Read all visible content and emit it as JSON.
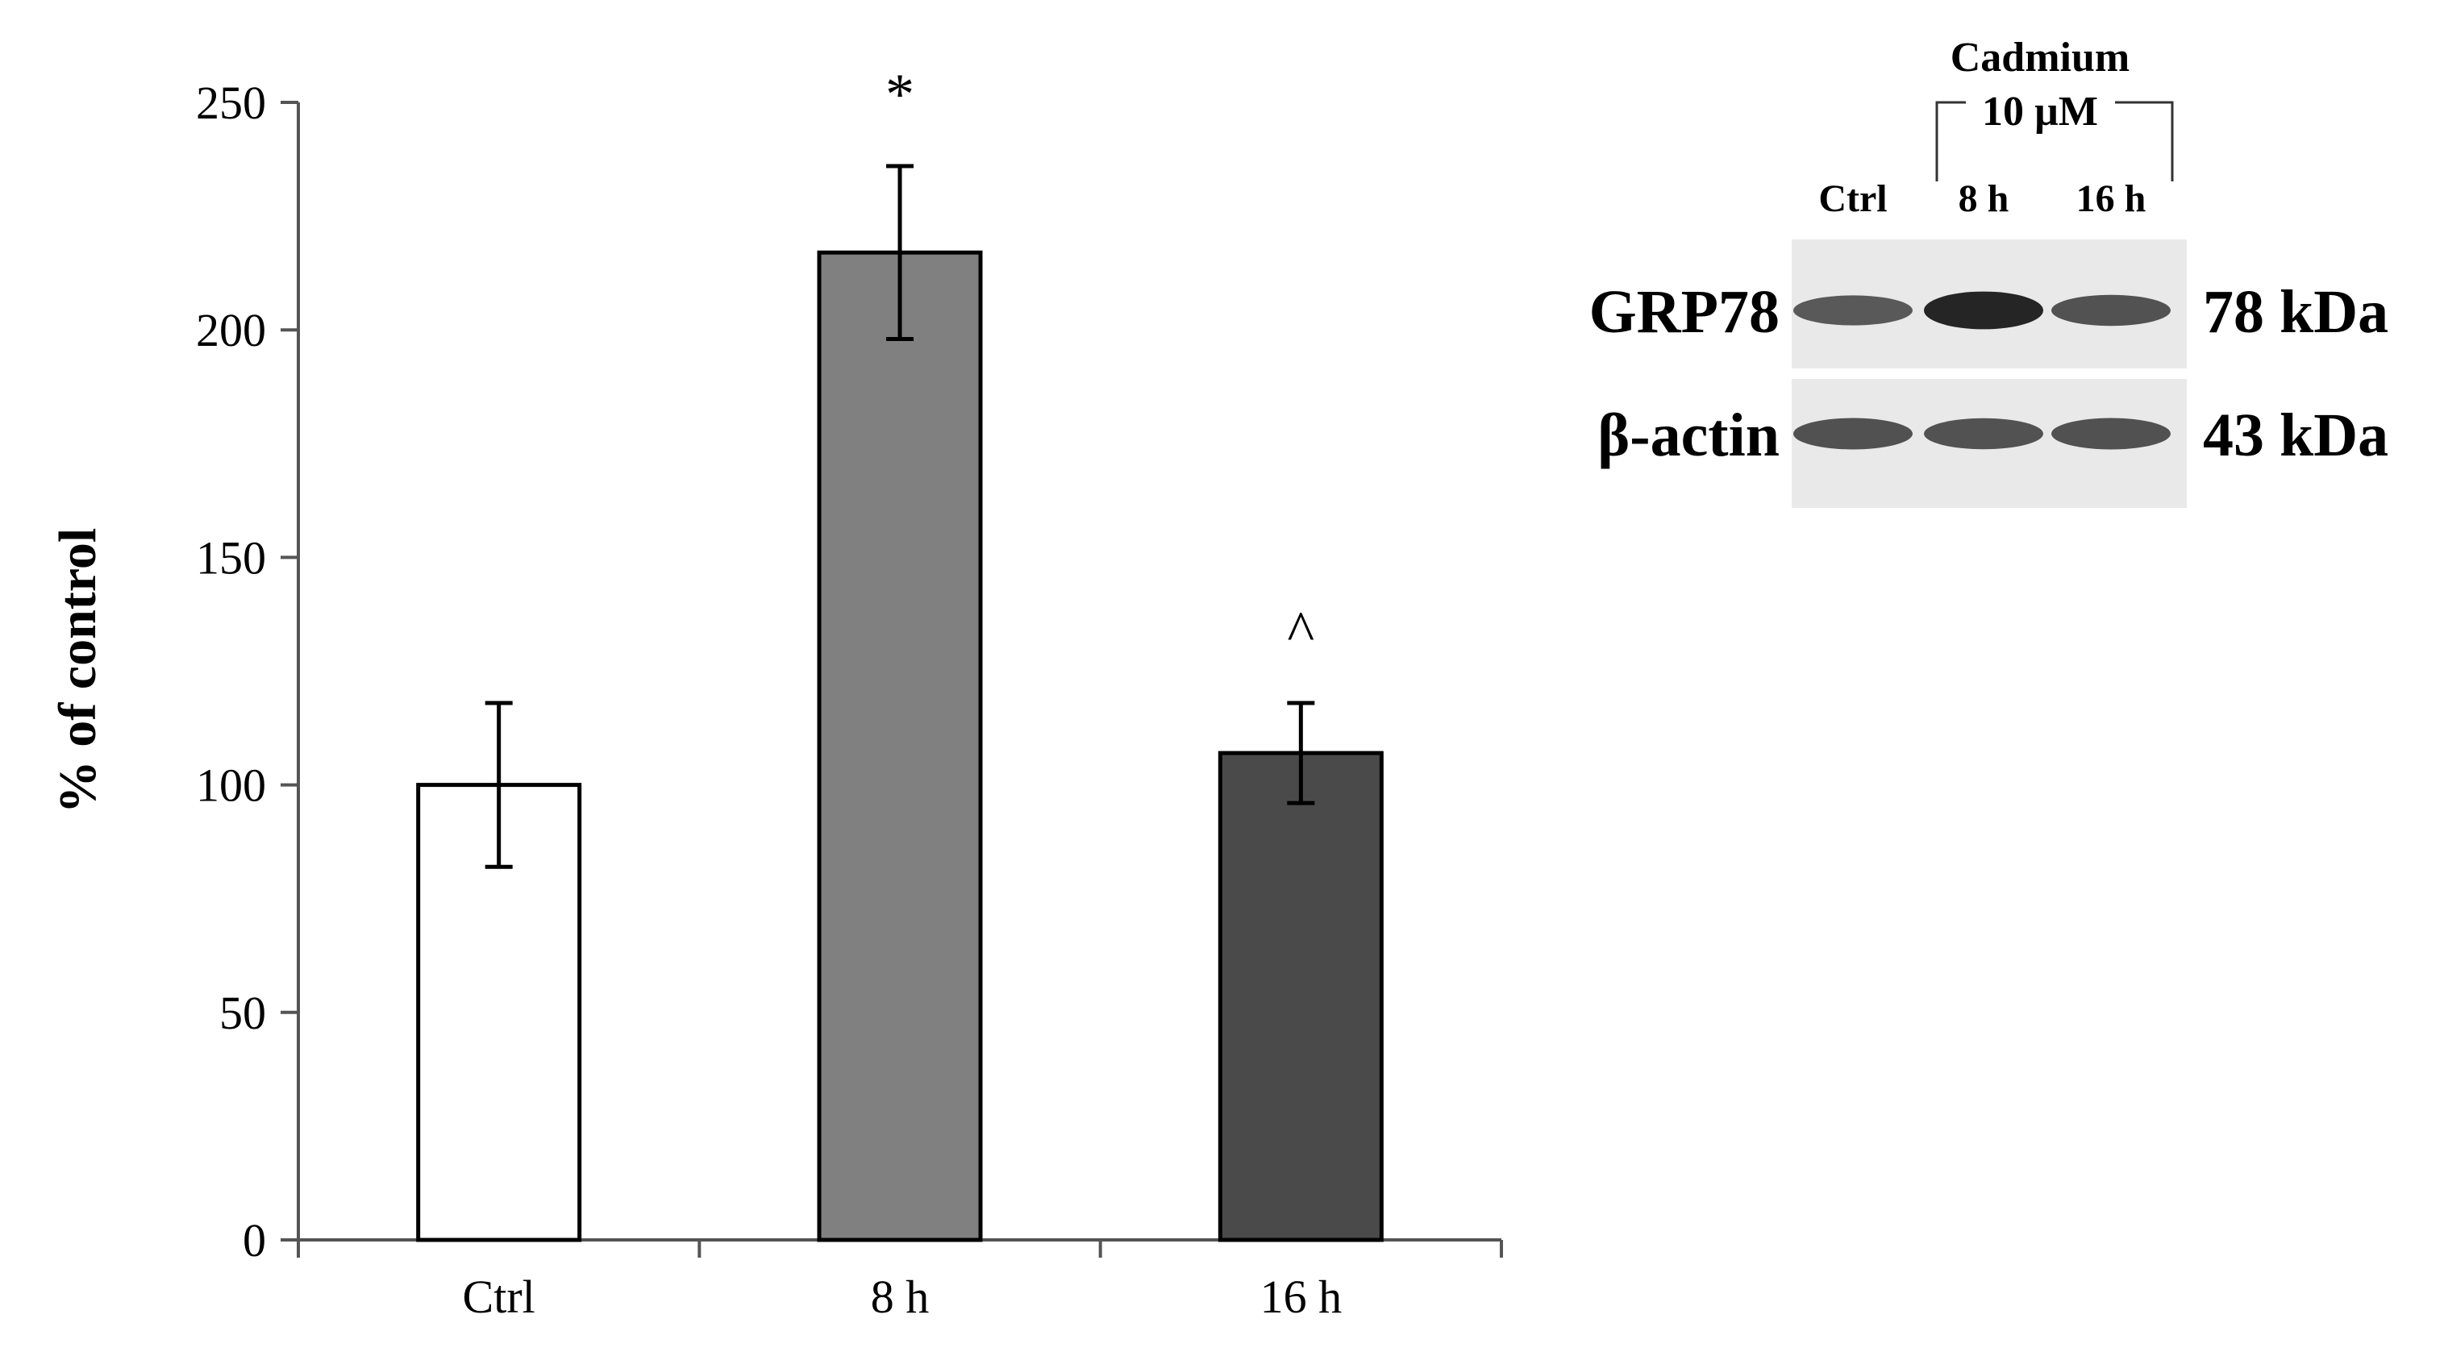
{
  "chart_data": {
    "type": "bar",
    "categories": [
      "Ctrl",
      "8 h",
      "16 h"
    ],
    "values": [
      100,
      217,
      107
    ],
    "errors": [
      18,
      19,
      11
    ],
    "bar_colors": [
      "#ffffff",
      "#808080",
      "#4a4a4a"
    ],
    "annotations": [
      "",
      "*",
      "^"
    ],
    "ylabel": "% of control",
    "xlabel": "",
    "ylim": [
      0,
      250
    ],
    "yticks": [
      0,
      50,
      100,
      150,
      200,
      250
    ],
    "grid": false
  },
  "blot": {
    "header_top": "Cadmium",
    "header_sub": "10 µM",
    "lanes": [
      "Ctrl",
      "8 h",
      "16 h"
    ],
    "rows": [
      {
        "protein": "GRP78",
        "size": "78 kDa",
        "band_intensity": [
          0.55,
          0.95,
          0.6
        ]
      },
      {
        "protein": "β-actin",
        "size": "43 kDa",
        "band_intensity": [
          0.62,
          0.6,
          0.62
        ]
      }
    ],
    "colors": {
      "membrane": "#e9e9e9",
      "band": "#1e1e1e"
    }
  }
}
